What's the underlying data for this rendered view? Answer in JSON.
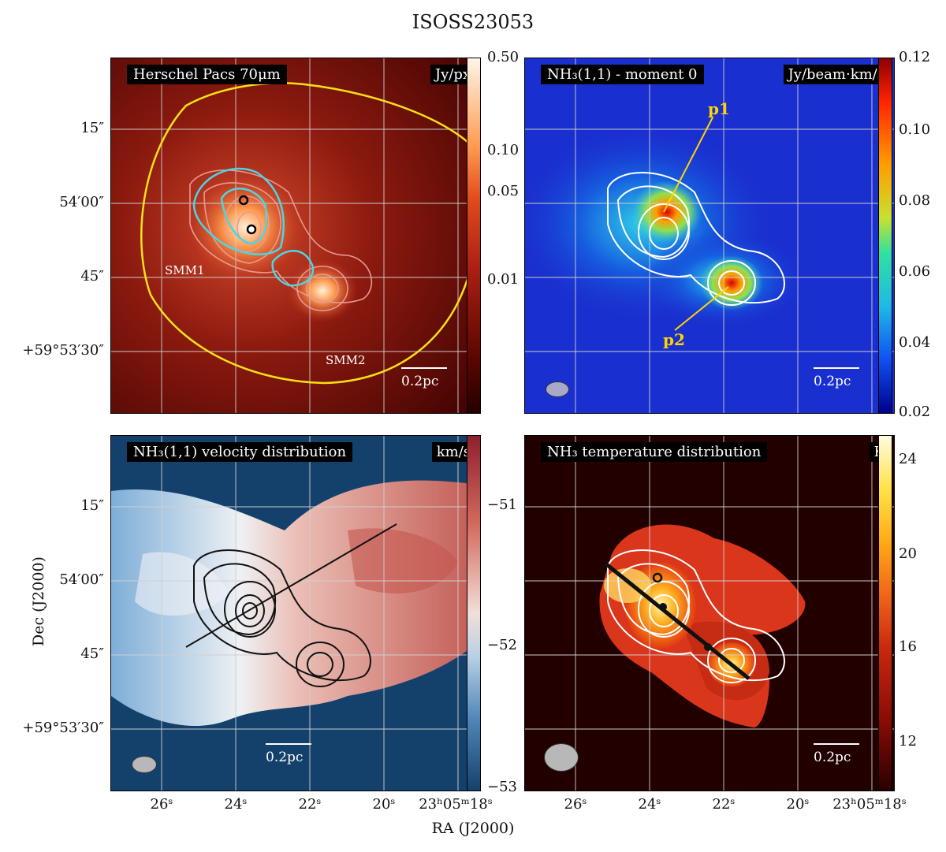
{
  "figure": {
    "title": "ISOSS23053",
    "xlabel": "RA (J2000)",
    "ylabel": "Dec (J2000)",
    "ra_ticks": [
      "26ˢ",
      "24ˢ",
      "22ˢ",
      "20ˢ",
      "23ʰ05ᵐ18ˢ"
    ],
    "dec_ticks_top": [
      "15″",
      "54′00″",
      "45″",
      "+59°53′30″"
    ],
    "dec_ticks_bottom": [
      "15″",
      "54′00″",
      "45″",
      "+59°53′30″"
    ],
    "scale_bar": "0.2pc"
  },
  "panels": {
    "herschel": {
      "label": "Herschel Pacs 70μm",
      "unit": "Jy/px",
      "colorbar_ticks": [
        "0.50",
        "0.10",
        "0.05",
        "0.01"
      ],
      "sources": [
        "SMM1",
        "SMM2"
      ],
      "colors": {
        "low": "#3a0000",
        "mid": "#c1331d",
        "high": "#ffe6c8",
        "contour_outer": "#f7e017",
        "contour_cyan": "#49d6e6"
      }
    },
    "moment0": {
      "label": "NH₃(1,1) - moment 0",
      "unit": "Jy/beam·km/s",
      "colorbar_ticks": [
        "0.12",
        "0.10",
        "0.08",
        "0.06",
        "0.04",
        "0.02"
      ],
      "peaks": [
        "p1",
        "p2"
      ],
      "colors": {
        "low": "#00008b",
        "mid": "#27c7e0",
        "high": "#d90000"
      }
    },
    "velocity": {
      "label": "NH₃(1,1) velocity distribution",
      "unit": "km/s",
      "colorbar_ticks": [
        "−51",
        "−52",
        "−53"
      ],
      "colors": {
        "blue": "#14416b",
        "white": "#f1ecea",
        "red": "#b5413e"
      }
    },
    "temperature": {
      "label": "NH₃ temperature distribution",
      "unit": "K",
      "colorbar_ticks": [
        "24",
        "20",
        "16",
        "12"
      ],
      "colors": {
        "low": "#2a0000",
        "mid": "#e23a10",
        "high": "#fffbd0"
      }
    }
  }
}
